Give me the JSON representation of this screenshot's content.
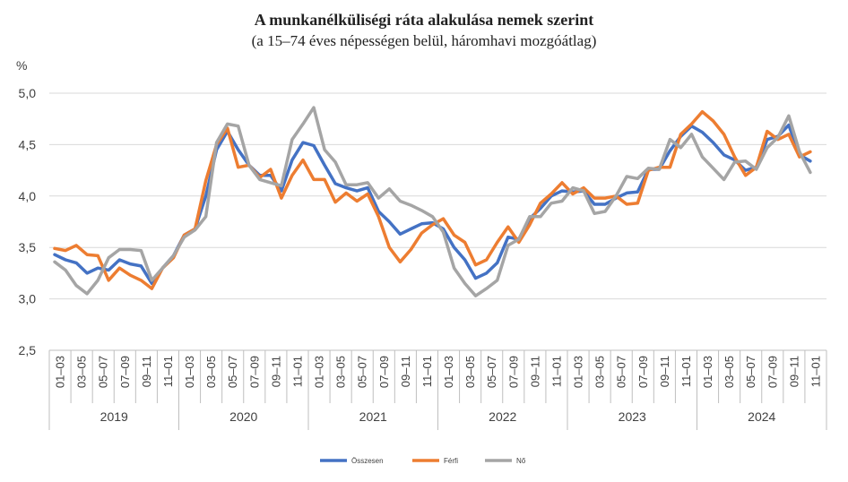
{
  "chart_data": {
    "type": "line",
    "title": "A munkanélküliségi  ráta alakulása nemek szerint",
    "subtitle": "(a 15–74 éves népességen belül, háromhavi mozgóátlag)",
    "ylabel": "%",
    "ylim": [
      2.5,
      5.0
    ],
    "yticks": [
      "2,5",
      "3,0",
      "3,5",
      "4,0",
      "4,5",
      "5,0"
    ],
    "ytick_values": [
      2.5,
      3.0,
      3.5,
      4.0,
      4.5,
      5.0
    ],
    "grid": true,
    "legend_position": "bottom",
    "year_labels": [
      "2019",
      "2020",
      "2021",
      "2022",
      "2023",
      "2024"
    ],
    "month_labels": [
      "01–03",
      "03–05",
      "05–07",
      "07–09",
      "09–11",
      "11–01"
    ],
    "x": [
      "2019-01",
      "2019-02",
      "2019-03",
      "2019-04",
      "2019-05",
      "2019-06",
      "2019-07",
      "2019-08",
      "2019-09",
      "2019-10",
      "2019-11",
      "2019-12",
      "2020-01",
      "2020-02",
      "2020-03",
      "2020-04",
      "2020-05",
      "2020-06",
      "2020-07",
      "2020-08",
      "2020-09",
      "2020-10",
      "2020-11",
      "2020-12",
      "2021-01",
      "2021-02",
      "2021-03",
      "2021-04",
      "2021-05",
      "2021-06",
      "2021-07",
      "2021-08",
      "2021-09",
      "2021-10",
      "2021-11",
      "2021-12",
      "2022-01",
      "2022-02",
      "2022-03",
      "2022-04",
      "2022-05",
      "2022-06",
      "2022-07",
      "2022-08",
      "2022-09",
      "2022-10",
      "2022-11",
      "2022-12",
      "2023-01",
      "2023-02",
      "2023-03",
      "2023-04",
      "2023-05",
      "2023-06",
      "2023-07",
      "2023-08",
      "2023-09",
      "2023-10",
      "2023-11",
      "2023-12",
      "2024-01",
      "2024-02",
      "2024-03",
      "2024-04",
      "2024-05",
      "2024-06",
      "2024-07",
      "2024-08",
      "2024-09",
      "2024-10",
      "2024-11"
    ],
    "series": [
      {
        "name": "Összesen",
        "color": "#4472C4",
        "values": [
          3.43,
          3.38,
          3.35,
          3.25,
          3.3,
          3.28,
          3.38,
          3.34,
          3.32,
          3.15,
          3.3,
          3.42,
          3.62,
          3.68,
          4.0,
          4.45,
          4.63,
          4.45,
          4.3,
          4.2,
          4.2,
          4.05,
          4.35,
          4.52,
          4.49,
          4.3,
          4.12,
          4.08,
          4.05,
          4.08,
          3.85,
          3.75,
          3.63,
          3.68,
          3.73,
          3.74,
          3.68,
          3.5,
          3.38,
          3.2,
          3.25,
          3.35,
          3.6,
          3.58,
          3.78,
          3.88,
          4.0,
          4.05,
          4.04,
          4.05,
          3.92,
          3.92,
          3.98,
          4.03,
          4.04,
          4.26,
          4.26,
          4.44,
          4.58,
          4.68,
          4.62,
          4.52,
          4.4,
          4.35,
          4.25,
          4.28,
          4.55,
          4.58,
          4.69,
          4.4,
          4.34
        ]
      },
      {
        "name": "Férfi",
        "color": "#ED7D31",
        "values": [
          3.49,
          3.47,
          3.52,
          3.43,
          3.42,
          3.18,
          3.3,
          3.23,
          3.18,
          3.1,
          3.3,
          3.4,
          3.62,
          3.68,
          4.15,
          4.5,
          4.66,
          4.28,
          4.3,
          4.18,
          4.26,
          3.98,
          4.2,
          4.35,
          4.16,
          4.16,
          3.94,
          4.03,
          3.95,
          4.02,
          3.8,
          3.5,
          3.36,
          3.48,
          3.64,
          3.72,
          3.78,
          3.62,
          3.55,
          3.33,
          3.38,
          3.55,
          3.7,
          3.55,
          3.72,
          3.93,
          4.02,
          4.13,
          4.02,
          4.08,
          3.98,
          3.98,
          4.0,
          3.92,
          3.93,
          4.25,
          4.28,
          4.28,
          4.6,
          4.7,
          4.82,
          4.73,
          4.6,
          4.38,
          4.2,
          4.28,
          4.63,
          4.55,
          4.6,
          4.38,
          4.43
        ]
      },
      {
        "name": "Nő",
        "color": "#A5A5A5",
        "values": [
          3.36,
          3.28,
          3.13,
          3.05,
          3.18,
          3.4,
          3.48,
          3.48,
          3.47,
          3.18,
          3.3,
          3.42,
          3.6,
          3.67,
          3.8,
          4.52,
          4.7,
          4.68,
          4.3,
          4.16,
          4.13,
          4.1,
          4.55,
          4.7,
          4.86,
          4.45,
          4.33,
          4.11,
          4.11,
          4.13,
          3.98,
          4.07,
          3.95,
          3.91,
          3.86,
          3.8,
          3.65,
          3.3,
          3.15,
          3.03,
          3.1,
          3.18,
          3.52,
          3.58,
          3.8,
          3.8,
          3.93,
          3.95,
          4.08,
          4.05,
          3.83,
          3.85,
          4.0,
          4.19,
          4.17,
          4.27,
          4.26,
          4.55,
          4.47,
          4.6,
          4.38,
          4.27,
          4.16,
          4.33,
          4.34,
          4.26,
          4.47,
          4.57,
          4.78,
          4.43,
          4.23
        ]
      }
    ]
  }
}
